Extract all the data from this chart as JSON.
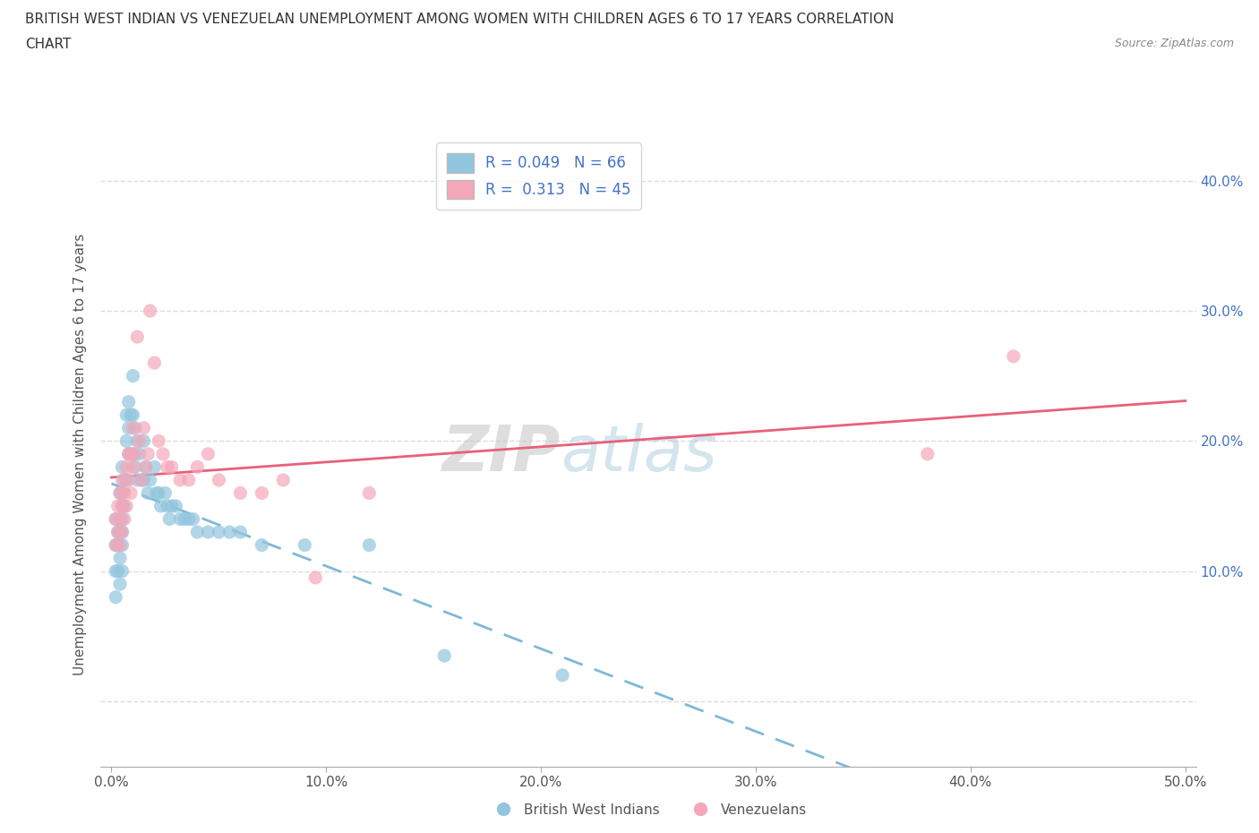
{
  "title_line1": "BRITISH WEST INDIAN VS VENEZUELAN UNEMPLOYMENT AMONG WOMEN WITH CHILDREN AGES 6 TO 17 YEARS CORRELATION",
  "title_line2": "CHART",
  "source_text": "Source: ZipAtlas.com",
  "ylabel": "Unemployment Among Women with Children Ages 6 to 17 years",
  "xlim": [
    -0.005,
    0.505
  ],
  "ylim": [
    -0.05,
    0.43
  ],
  "xticks": [
    0.0,
    0.1,
    0.2,
    0.3,
    0.4,
    0.5
  ],
  "xtick_labels": [
    "0.0%",
    "10.0%",
    "20.0%",
    "30.0%",
    "40.0%",
    "50.0%"
  ],
  "yticks": [
    0.0,
    0.1,
    0.2,
    0.3,
    0.4
  ],
  "ytick_labels_right": [
    "",
    "10.0%",
    "20.0%",
    "30.0%",
    "40.0%"
  ],
  "legend_r1_label": "R = 0.049   N = 66",
  "legend_r2_label": "R =  0.313   N = 45",
  "color_bwi": "#92C5DE",
  "color_ven": "#F4A7B9",
  "watermark_top": "ZIP",
  "watermark_bot": "atlas",
  "bwi_x": [
    0.002,
    0.002,
    0.002,
    0.002,
    0.003,
    0.003,
    0.003,
    0.004,
    0.004,
    0.004,
    0.004,
    0.004,
    0.005,
    0.005,
    0.005,
    0.005,
    0.005,
    0.005,
    0.005,
    0.006,
    0.006,
    0.007,
    0.007,
    0.007,
    0.008,
    0.008,
    0.008,
    0.009,
    0.009,
    0.01,
    0.01,
    0.01,
    0.011,
    0.011,
    0.012,
    0.012,
    0.013,
    0.014,
    0.015,
    0.015,
    0.016,
    0.017,
    0.018,
    0.02,
    0.021,
    0.022,
    0.023,
    0.025,
    0.026,
    0.027,
    0.028,
    0.03,
    0.032,
    0.034,
    0.036,
    0.038,
    0.04,
    0.045,
    0.05,
    0.055,
    0.06,
    0.07,
    0.09,
    0.12,
    0.155,
    0.21
  ],
  "bwi_y": [
    0.14,
    0.12,
    0.1,
    0.08,
    0.13,
    0.12,
    0.1,
    0.16,
    0.14,
    0.13,
    0.11,
    0.09,
    0.18,
    0.16,
    0.15,
    0.14,
    0.13,
    0.12,
    0.1,
    0.17,
    0.15,
    0.22,
    0.2,
    0.17,
    0.23,
    0.21,
    0.19,
    0.22,
    0.19,
    0.25,
    0.22,
    0.19,
    0.21,
    0.18,
    0.2,
    0.17,
    0.19,
    0.17,
    0.2,
    0.17,
    0.18,
    0.16,
    0.17,
    0.18,
    0.16,
    0.16,
    0.15,
    0.16,
    0.15,
    0.14,
    0.15,
    0.15,
    0.14,
    0.14,
    0.14,
    0.14,
    0.13,
    0.13,
    0.13,
    0.13,
    0.13,
    0.12,
    0.12,
    0.12,
    0.035,
    0.02
  ],
  "ven_x": [
    0.002,
    0.002,
    0.003,
    0.003,
    0.004,
    0.004,
    0.004,
    0.005,
    0.005,
    0.005,
    0.006,
    0.006,
    0.007,
    0.007,
    0.008,
    0.008,
    0.009,
    0.009,
    0.01,
    0.01,
    0.011,
    0.012,
    0.013,
    0.014,
    0.015,
    0.016,
    0.017,
    0.018,
    0.02,
    0.022,
    0.024,
    0.026,
    0.028,
    0.032,
    0.036,
    0.04,
    0.045,
    0.05,
    0.06,
    0.07,
    0.08,
    0.095,
    0.12,
    0.38,
    0.42
  ],
  "ven_y": [
    0.14,
    0.12,
    0.15,
    0.13,
    0.16,
    0.14,
    0.12,
    0.17,
    0.15,
    0.13,
    0.16,
    0.14,
    0.18,
    0.15,
    0.19,
    0.17,
    0.19,
    0.16,
    0.21,
    0.18,
    0.19,
    0.28,
    0.2,
    0.17,
    0.21,
    0.18,
    0.19,
    0.3,
    0.26,
    0.2,
    0.19,
    0.18,
    0.18,
    0.17,
    0.17,
    0.18,
    0.19,
    0.17,
    0.16,
    0.16,
    0.17,
    0.095,
    0.16,
    0.19,
    0.265
  ]
}
